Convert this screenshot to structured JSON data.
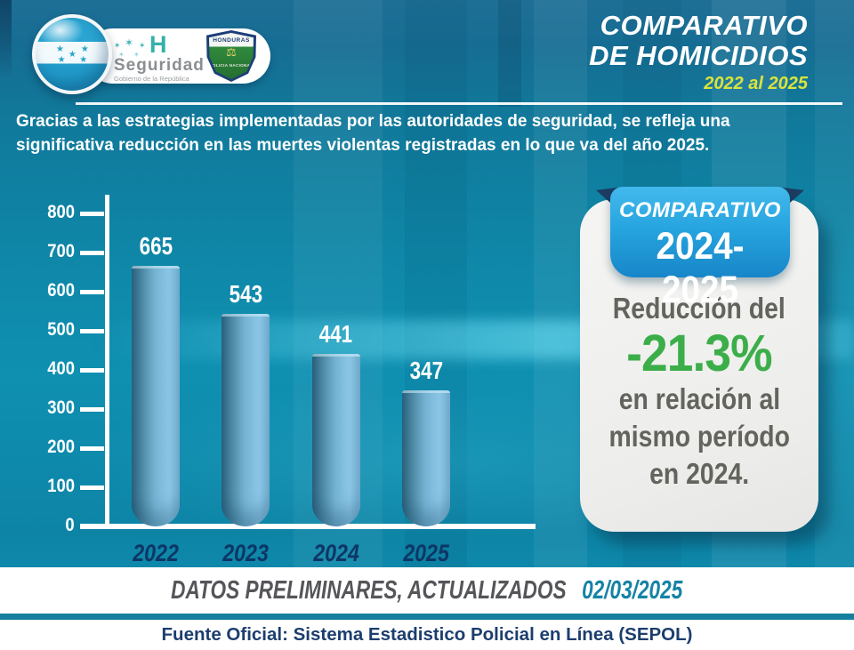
{
  "header": {
    "logo": {
      "h_label": "H",
      "brand": "Seguridad",
      "sub": "Gobierno de la República",
      "badge_top": "HONDURAS",
      "badge_bottom": "POLICIA NACIONAL"
    },
    "title_line1": "COMPARATIVO",
    "title_line2": "DE HOMICIDIOS",
    "title_range": "2022 al 2025"
  },
  "subtitle": {
    "line1": "Gracias a las estrategias implementadas por las autoridades de seguridad, se refleja una",
    "line2": "significativa reducción en las muertes violentas registradas en lo que va del año 2025."
  },
  "chart_data": {
    "type": "bar",
    "title": "COMPARATIVO DE HOMICIDIOS 2022 al 2025",
    "categories": [
      "2022",
      "2023",
      "2024",
      "2025"
    ],
    "values": [
      665,
      543,
      441,
      347
    ],
    "xlabel": "",
    "ylabel": "",
    "ylim": [
      0,
      800
    ],
    "yticks": [
      800,
      700,
      600,
      500,
      400,
      300,
      200,
      100,
      0
    ],
    "grid": false,
    "legend_position": "none",
    "bar_color": "#74b2d2"
  },
  "comparison_card": {
    "ribbon_label": "COMPARATIVO",
    "ribbon_range": "2024-2025",
    "line1": "Reducción del",
    "highlight": "-21.3%",
    "line2": "en relación al",
    "line3": "mismo período",
    "line4": "en 2024.",
    "highlight_color": "#3cae49",
    "ribbon_color": "#27a5e0"
  },
  "footer": {
    "prelim_label": "DATOS PRELIMINARES, ACTUALIZADOS",
    "date": "02/03/2025",
    "source": "Fuente Oficial: Sistema Estadistico Policial en Línea (SEPOL)"
  },
  "colors": {
    "background_teal": "#0f84a5",
    "title_yellow": "#d9e43c",
    "year_navy": "#0d3666",
    "footer_stripe": "#15809d",
    "source_navy": "#1c3e6e"
  }
}
